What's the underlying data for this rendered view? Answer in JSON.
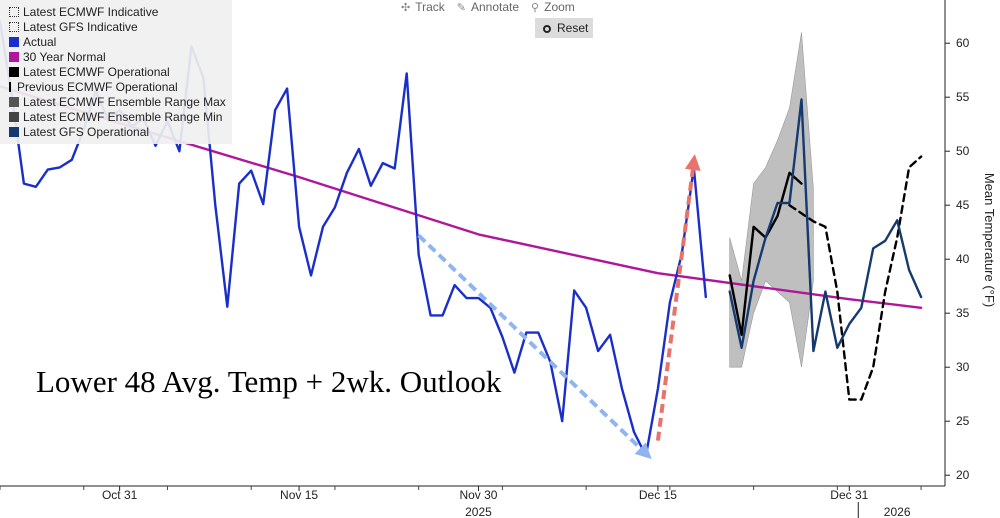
{
  "toolbar": {
    "track_label": "Track",
    "annotate_label": "Annotate",
    "zoom_label": "Zoom",
    "reset_label": "Reset"
  },
  "overlay_title": "Lower 48 Avg. Temp + 2wk. Outlook",
  "chart_data": {
    "type": "line",
    "ylabel": "Mean Temperature (°F)",
    "ylim": [
      19,
      64
    ],
    "yticks": [
      20,
      25,
      30,
      35,
      40,
      45,
      50,
      55,
      60
    ],
    "xlim": [
      "2025-10-21",
      "2026-01-08"
    ],
    "xticks": [
      {
        "date": "2025-10-31",
        "label": "Oct 31"
      },
      {
        "date": "2025-11-15",
        "label": "Nov 15"
      },
      {
        "date": "2025-11-30",
        "label": "Nov 30"
      },
      {
        "date": "2025-12-15",
        "label": "Dec 15"
      },
      {
        "date": "2025-12-31",
        "label": "Dec 31"
      }
    ],
    "year_labels": [
      {
        "date": "2025-11-30",
        "label": "2025"
      },
      {
        "date": "2026-01-04",
        "label": "2026"
      }
    ],
    "grid": false,
    "legend_position": "top-left",
    "legend": [
      {
        "name": "Latest ECMWF Indicative",
        "swatch": "dotted"
      },
      {
        "name": "Latest GFS Indicative",
        "swatch": "dotted"
      },
      {
        "name": "Actual",
        "color": "#1a2fc9"
      },
      {
        "name": "30 Year Normal",
        "color": "#b0169c"
      },
      {
        "name": "Latest ECMWF Operational",
        "color": "#000000"
      },
      {
        "name": "Previous ECMWF Operational",
        "swatch": "dashed"
      },
      {
        "name": "Latest ECMWF Ensemble Range Max",
        "color": "#555555"
      },
      {
        "name": "Latest ECMWF Ensemble Range Min",
        "color": "#444444"
      },
      {
        "name": "Latest GFS Operational",
        "color": "#163a70"
      }
    ],
    "series": [
      {
        "name": "30 Year Normal",
        "color": "#b0169c",
        "points": [
          [
            "2025-10-21",
            56.0
          ],
          [
            "2025-10-31",
            52.6
          ],
          [
            "2025-11-15",
            47.6
          ],
          [
            "2025-11-30",
            42.3
          ],
          [
            "2025-12-15",
            38.7
          ],
          [
            "2025-12-31",
            36.3
          ],
          [
            "2026-01-06",
            35.5
          ]
        ]
      },
      {
        "name": "Actual",
        "color": "#1a2fc9",
        "points": [
          [
            "2025-10-21",
            62.0
          ],
          [
            "2025-10-22",
            55.0
          ],
          [
            "2025-10-23",
            47.0
          ],
          [
            "2025-10-24",
            46.7
          ],
          [
            "2025-10-25",
            48.3
          ],
          [
            "2025-10-26",
            48.5
          ],
          [
            "2025-10-27",
            49.2
          ],
          [
            "2025-10-28",
            52.0
          ],
          [
            "2025-10-29",
            55.6
          ],
          [
            "2025-10-30",
            53.0
          ],
          [
            "2025-10-31",
            53.8
          ],
          [
            "2025-11-01",
            52.3
          ],
          [
            "2025-11-02",
            53.0
          ],
          [
            "2025-11-03",
            50.5
          ],
          [
            "2025-11-04",
            52.8
          ],
          [
            "2025-11-05",
            50.0
          ],
          [
            "2025-11-06",
            59.7
          ],
          [
            "2025-11-07",
            56.8
          ],
          [
            "2025-11-08",
            45.0
          ],
          [
            "2025-11-09",
            35.6
          ],
          [
            "2025-11-10",
            47.0
          ],
          [
            "2025-11-11",
            48.2
          ],
          [
            "2025-11-12",
            45.1
          ],
          [
            "2025-11-13",
            53.8
          ],
          [
            "2025-11-14",
            55.8
          ],
          [
            "2025-11-15",
            43.0
          ],
          [
            "2025-11-16",
            38.5
          ],
          [
            "2025-11-17",
            43.0
          ],
          [
            "2025-11-18",
            44.8
          ],
          [
            "2025-11-19",
            48.0
          ],
          [
            "2025-11-20",
            50.2
          ],
          [
            "2025-11-21",
            46.8
          ],
          [
            "2025-11-22",
            48.9
          ],
          [
            "2025-11-23",
            48.4
          ],
          [
            "2025-11-24",
            57.2
          ],
          [
            "2025-11-25",
            40.4
          ],
          [
            "2025-11-26",
            34.8
          ],
          [
            "2025-11-27",
            34.8
          ],
          [
            "2025-11-28",
            37.6
          ],
          [
            "2025-11-29",
            36.4
          ],
          [
            "2025-11-30",
            36.4
          ],
          [
            "2025-12-01",
            35.5
          ],
          [
            "2025-12-02",
            32.8
          ],
          [
            "2025-12-03",
            29.5
          ],
          [
            "2025-12-04",
            33.2
          ],
          [
            "2025-12-05",
            33.2
          ],
          [
            "2025-12-06",
            30.5
          ],
          [
            "2025-12-07",
            25.0
          ],
          [
            "2025-12-08",
            37.1
          ],
          [
            "2025-12-09",
            35.5
          ],
          [
            "2025-12-10",
            31.5
          ],
          [
            "2025-12-11",
            33.0
          ],
          [
            "2025-12-12",
            28.0
          ],
          [
            "2025-12-13",
            24.0
          ],
          [
            "2025-12-14",
            21.8
          ],
          [
            "2025-12-15",
            28.0
          ],
          [
            "2025-12-16",
            36.0
          ],
          [
            "2025-12-17",
            40.5
          ],
          [
            "2025-12-18",
            48.5
          ],
          [
            "2025-12-19",
            36.5
          ]
        ]
      },
      {
        "name": "Latest ECMWF Operational",
        "color": "#000000",
        "points": [
          [
            "2025-12-21",
            38.5
          ],
          [
            "2025-12-22",
            33.0
          ],
          [
            "2025-12-23",
            43.0
          ],
          [
            "2025-12-24",
            42.0
          ],
          [
            "2025-12-25",
            44.0
          ],
          [
            "2025-12-26",
            48.0
          ],
          [
            "2025-12-27",
            47.0
          ]
        ]
      },
      {
        "name": "Previous ECMWF Operational",
        "color": "#000000",
        "dashed": true,
        "points": [
          [
            "2025-12-26",
            45.0
          ],
          [
            "2025-12-28",
            43.5
          ],
          [
            "2025-12-29",
            43.0
          ],
          [
            "2025-12-30",
            37.0
          ],
          [
            "2025-12-31",
            27.0
          ],
          [
            "2026-01-01",
            27.0
          ],
          [
            "2026-01-02",
            30.0
          ],
          [
            "2026-01-03",
            37.0
          ],
          [
            "2026-01-04",
            42.0
          ],
          [
            "2026-01-05",
            48.5
          ],
          [
            "2026-01-06",
            49.5
          ]
        ]
      },
      {
        "name": "Latest GFS Operational",
        "color": "#163a70",
        "points": [
          [
            "2025-12-21",
            37.0
          ],
          [
            "2025-12-22",
            31.8
          ],
          [
            "2025-12-23",
            38.0
          ],
          [
            "2025-12-24",
            42.0
          ],
          [
            "2025-12-25",
            45.2
          ],
          [
            "2025-12-26",
            45.2
          ],
          [
            "2025-12-27",
            54.8
          ],
          [
            "2025-12-28",
            31.5
          ],
          [
            "2025-12-29",
            37.0
          ],
          [
            "2025-12-30",
            31.8
          ],
          [
            "2025-12-31",
            34.0
          ],
          [
            "2026-01-01",
            35.5
          ],
          [
            "2026-01-02",
            41.0
          ],
          [
            "2026-01-03",
            41.7
          ],
          [
            "2026-01-04",
            43.6
          ],
          [
            "2026-01-05",
            39.0
          ],
          [
            "2026-01-06",
            36.5
          ]
        ]
      }
    ],
    "ensemble_range": {
      "max_series": "Latest ECMWF Ensemble Range Max",
      "min_series": "Latest ECMWF Ensemble Range Min",
      "fill": "#b4b4b4",
      "points": [
        [
          "2025-12-21",
          30.0,
          42.0
        ],
        [
          "2025-12-22",
          30.0,
          38.0
        ],
        [
          "2025-12-23",
          35.0,
          47.0
        ],
        [
          "2025-12-24",
          38.0,
          48.5
        ],
        [
          "2025-12-25",
          37.0,
          51.0
        ],
        [
          "2025-12-26",
          36.0,
          54.0
        ],
        [
          "2025-12-27",
          30.0,
          61.0
        ],
        [
          "2025-12-28",
          38.0,
          46.5
        ]
      ]
    },
    "annotations": [
      {
        "type": "arrow",
        "color": "#8fb5f0",
        "from": [
          "2025-11-25",
          42.2
        ],
        "to": [
          "2025-12-14",
          22.0
        ]
      },
      {
        "type": "arrow",
        "color": "#e8736a",
        "from": [
          "2025-12-15",
          23.2
        ],
        "to": [
          "2025-12-18",
          49.0
        ]
      }
    ]
  }
}
